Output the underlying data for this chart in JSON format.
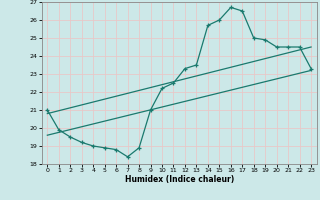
{
  "xlabel": "Humidex (Indice chaleur)",
  "xlim": [
    -0.5,
    23.5
  ],
  "ylim": [
    18,
    27
  ],
  "xticks": [
    0,
    1,
    2,
    3,
    4,
    5,
    6,
    7,
    8,
    9,
    10,
    11,
    12,
    13,
    14,
    15,
    16,
    17,
    18,
    19,
    20,
    21,
    22,
    23
  ],
  "yticks": [
    18,
    19,
    20,
    21,
    22,
    23,
    24,
    25,
    26,
    27
  ],
  "bg_color": "#cce8e8",
  "grid_color": "#b8d8d8",
  "line_color": "#1a7a6e",
  "main_line_x": [
    0,
    1,
    2,
    3,
    4,
    5,
    6,
    7,
    8,
    9,
    10,
    11,
    12,
    13,
    14,
    15,
    16,
    17,
    18,
    19,
    20,
    21,
    22,
    23
  ],
  "main_line_y": [
    21.0,
    19.9,
    19.5,
    19.2,
    19.0,
    18.9,
    18.8,
    18.4,
    18.9,
    21.0,
    22.2,
    22.5,
    23.3,
    23.5,
    25.7,
    26.0,
    26.7,
    26.5,
    25.0,
    24.9,
    24.5,
    24.5,
    24.5,
    23.3
  ],
  "trend1_x": [
    0,
    23
  ],
  "trend1_y": [
    19.6,
    23.2
  ],
  "trend2_x": [
    0,
    23
  ],
  "trend2_y": [
    20.8,
    24.5
  ]
}
